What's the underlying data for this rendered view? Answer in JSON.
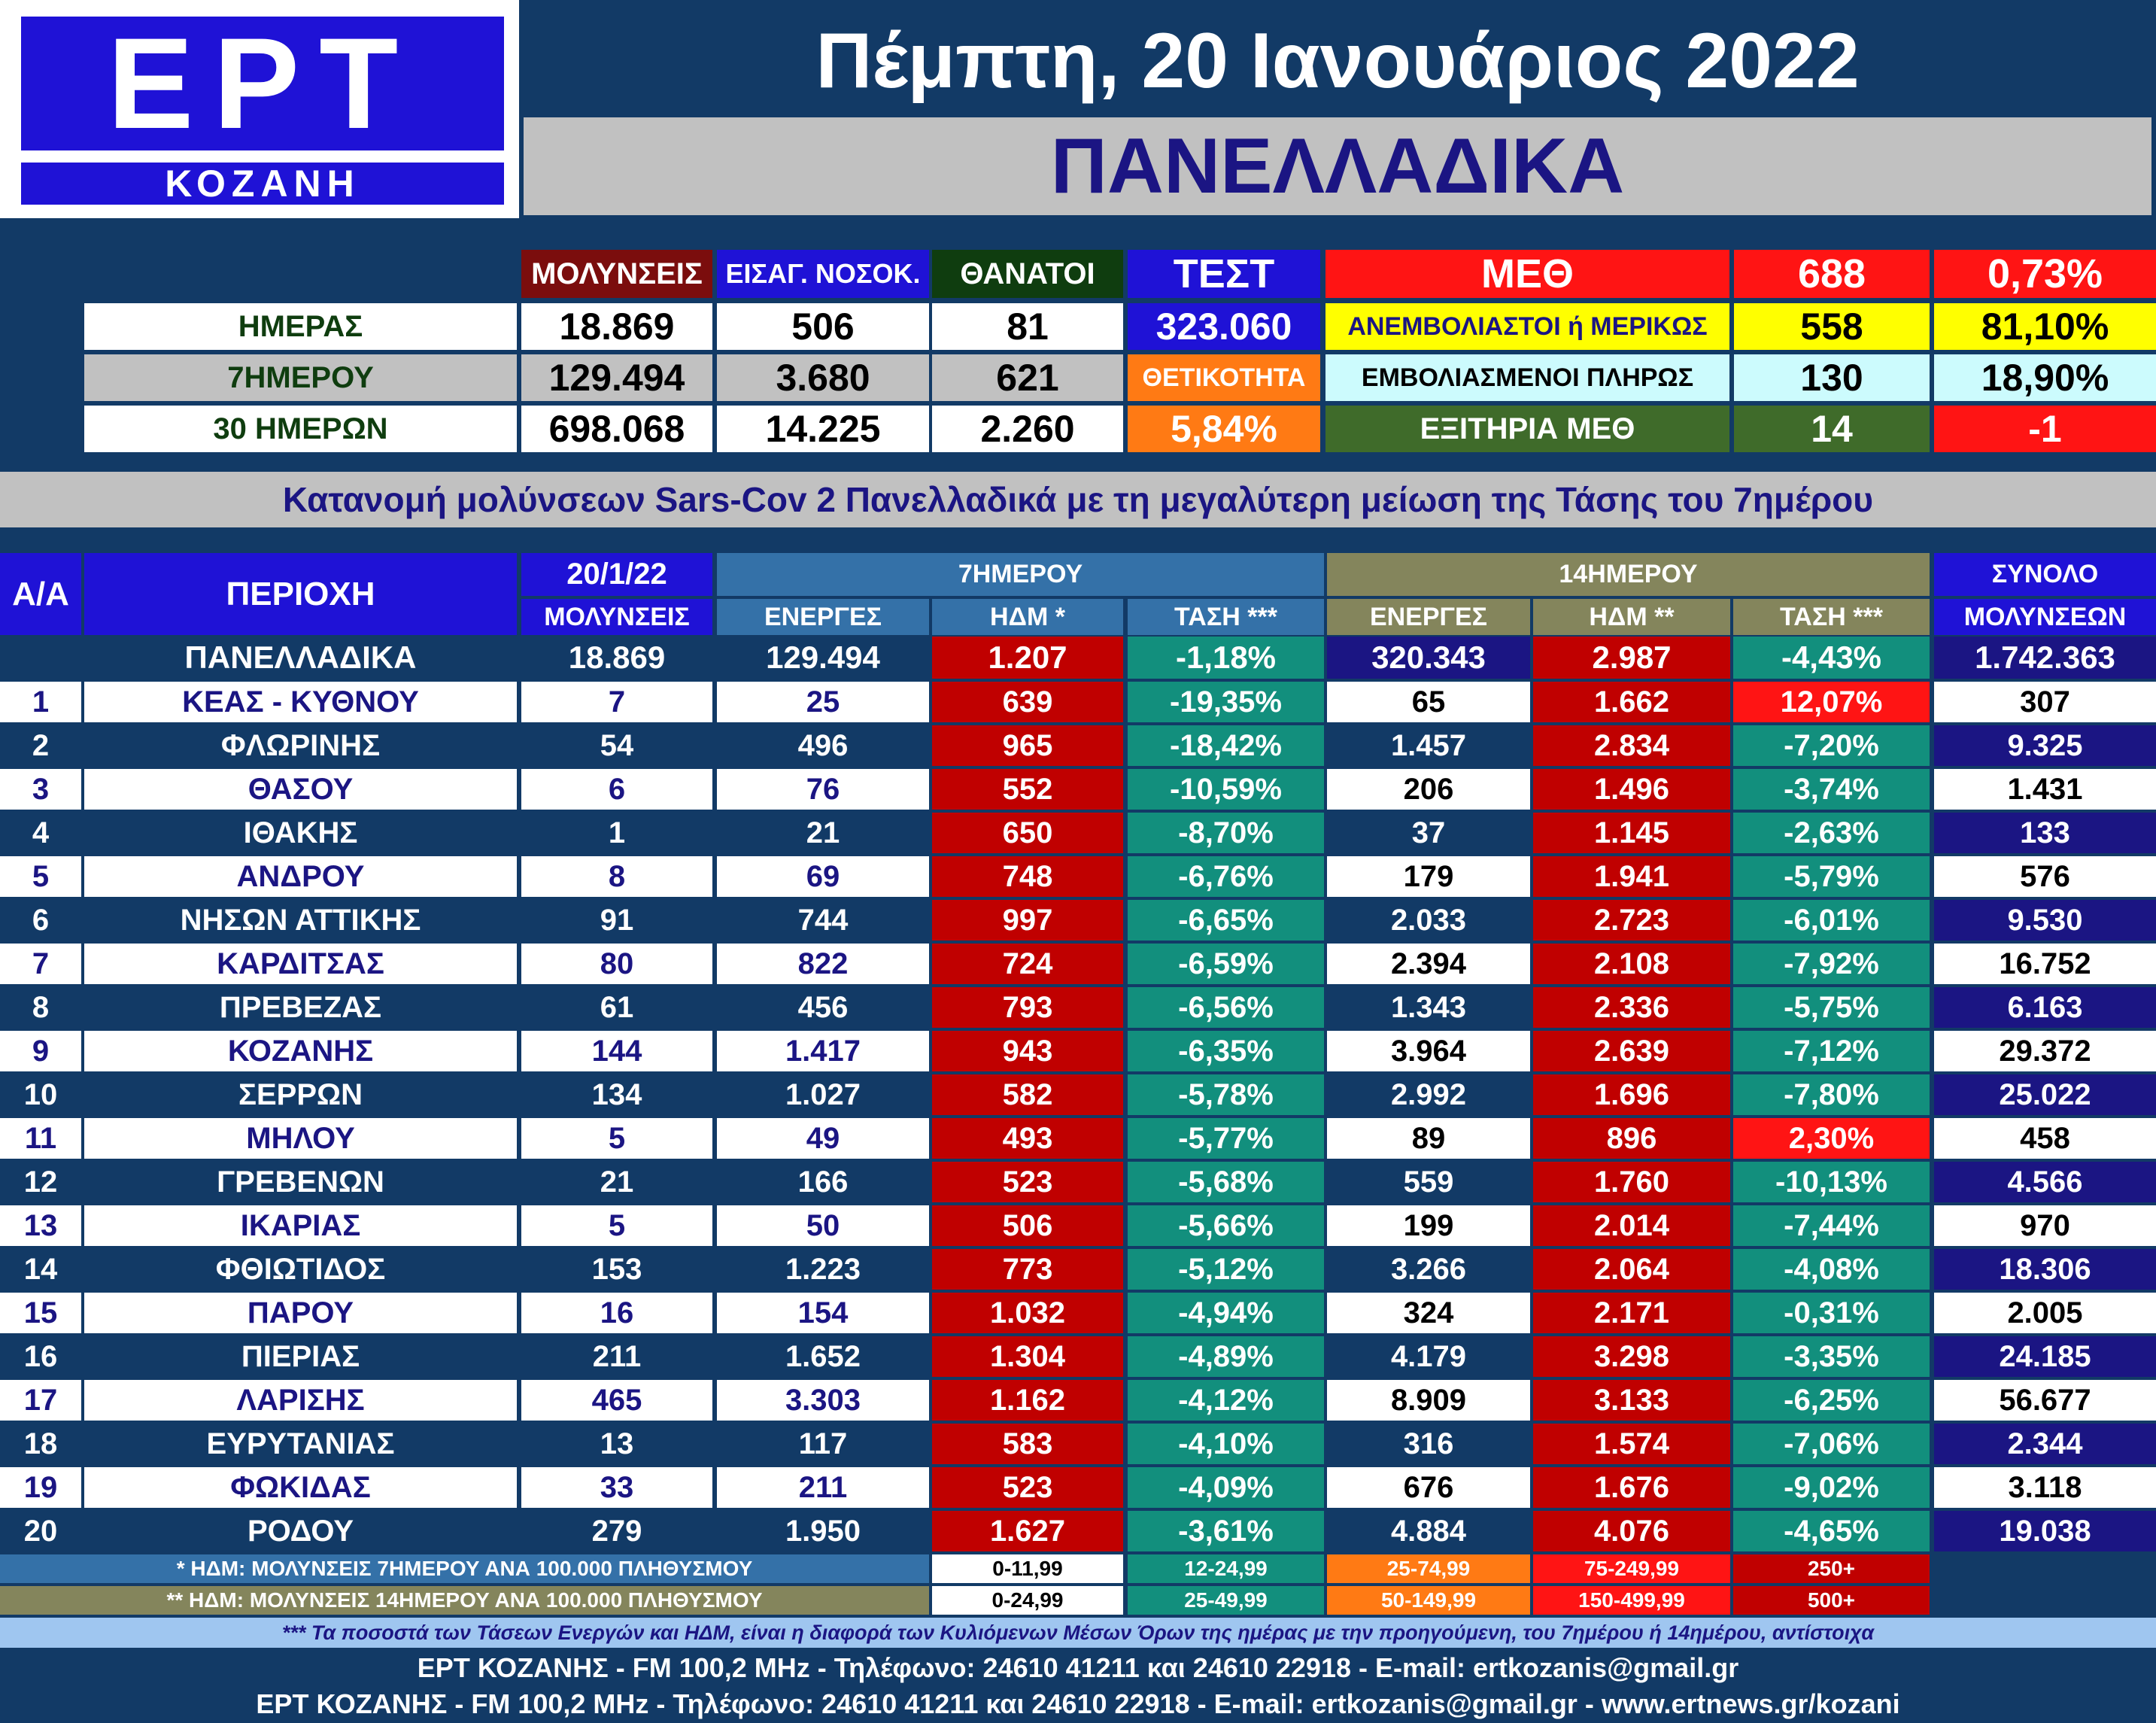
{
  "logo": {
    "top": "ΕΡΤ",
    "bottom": "ΚΟΖΑΝΗ"
  },
  "header": {
    "date": "Πέμπτη, 20 Ιανουάριος 2022",
    "subtitle": "ΠΑΝΕΛΛΑΔΙΚΑ"
  },
  "summary": {
    "col_headers": [
      "ΜΟΛΥΝΣΕΙΣ",
      "ΕΙΣΑΓ. ΝΟΣΟΚ.",
      "ΘΑΝΑΤΟΙ"
    ],
    "rows": [
      {
        "label": "ΗΜΕΡΑΣ",
        "values": [
          "18.869",
          "506",
          "81"
        ]
      },
      {
        "label": "7ΗΜΕΡΟΥ",
        "values": [
          "129.494",
          "3.680",
          "621"
        ]
      },
      {
        "label": "30 ΗΜΕΡΩΝ",
        "values": [
          "698.068",
          "14.225",
          "2.260"
        ]
      }
    ],
    "test_label": "ΤΕΣΤ",
    "test_value": "323.060",
    "positivity_label": "ΘΕΤΙΚΟΤΗΤΑ",
    "positivity_value": "5,84%",
    "icu": [
      {
        "label": "ΜΕΘ",
        "count": "688",
        "pct": "0,73%"
      },
      {
        "label": "ΑΝΕΜΒΟΛΙΑΣΤΟΙ ή ΜΕΡΙΚΩΣ",
        "count": "558",
        "pct": "81,10%"
      },
      {
        "label": "ΕΜΒΟΛΙΑΣΜΕΝΟΙ ΠΛΗΡΩΣ",
        "count": "130",
        "pct": "18,90%"
      },
      {
        "label": "ΕΞΙΤΗΡΙΑ ΜΕΘ",
        "count": "14",
        "pct": "-1"
      }
    ]
  },
  "banner": "Κατανομή μολύνσεων Sars-Cov 2 Πανελλαδικά με τη μεγαλύτερη μείωση της Τάσης του 7ημέρου",
  "table": {
    "h_aa": "Α/Α",
    "h_region": "ΠΕΡΙΟΧΗ",
    "h_date": "20/1/22",
    "h_infections": "ΜΟΛΥΝΣΕΙΣ",
    "h_7day": "7ΗΜΕΡΟΥ",
    "h_14day": "14ΗΜΕΡΟΥ",
    "h_total": "ΣΥΝΟΛΟ",
    "h_total_sub": "ΜΟΛΥΝΣΕΩΝ",
    "h_active": "ΕΝΕΡΓΕΣ",
    "h_hdm7": "ΗΔΜ *",
    "h_trend7": "ΤΑΣΗ ***",
    "h_hdm14": "ΗΔΜ **",
    "h_trend14": "ΤΑΣΗ ***",
    "national": {
      "name": "ΠΑΝΕΛΛΑΔΙΚΑ",
      "cases": "18.869",
      "act7": "129.494",
      "hdm7": "1.207",
      "tr7": "-1,18%",
      "act14": "320.343",
      "hdm14": "2.987",
      "tr14": "-4,43%",
      "total": "1.742.363"
    },
    "rows": [
      {
        "aa": "1",
        "name": "ΚΕΑΣ - ΚΥΘΝΟΥ",
        "cases": "7",
        "act7": "25",
        "hdm7": "639",
        "tr7": "-19,35%",
        "act14": "65",
        "hdm14": "1.662",
        "tr14": "12,07%",
        "total": "307"
      },
      {
        "aa": "2",
        "name": "ΦΛΩΡΙΝΗΣ",
        "cases": "54",
        "act7": "496",
        "hdm7": "965",
        "tr7": "-18,42%",
        "act14": "1.457",
        "hdm14": "2.834",
        "tr14": "-7,20%",
        "total": "9.325"
      },
      {
        "aa": "3",
        "name": "ΘΑΣΟΥ",
        "cases": "6",
        "act7": "76",
        "hdm7": "552",
        "tr7": "-10,59%",
        "act14": "206",
        "hdm14": "1.496",
        "tr14": "-3,74%",
        "total": "1.431"
      },
      {
        "aa": "4",
        "name": "ΙΘΑΚΗΣ",
        "cases": "1",
        "act7": "21",
        "hdm7": "650",
        "tr7": "-8,70%",
        "act14": "37",
        "hdm14": "1.145",
        "tr14": "-2,63%",
        "total": "133"
      },
      {
        "aa": "5",
        "name": "ΑΝΔΡΟΥ",
        "cases": "8",
        "act7": "69",
        "hdm7": "748",
        "tr7": "-6,76%",
        "act14": "179",
        "hdm14": "1.941",
        "tr14": "-5,79%",
        "total": "576"
      },
      {
        "aa": "6",
        "name": "ΝΗΣΩΝ ΑΤΤΙΚΗΣ",
        "cases": "91",
        "act7": "744",
        "hdm7": "997",
        "tr7": "-6,65%",
        "act14": "2.033",
        "hdm14": "2.723",
        "tr14": "-6,01%",
        "total": "9.530"
      },
      {
        "aa": "7",
        "name": "ΚΑΡΔΙΤΣΑΣ",
        "cases": "80",
        "act7": "822",
        "hdm7": "724",
        "tr7": "-6,59%",
        "act14": "2.394",
        "hdm14": "2.108",
        "tr14": "-7,92%",
        "total": "16.752"
      },
      {
        "aa": "8",
        "name": "ΠΡΕΒΕΖΑΣ",
        "cases": "61",
        "act7": "456",
        "hdm7": "793",
        "tr7": "-6,56%",
        "act14": "1.343",
        "hdm14": "2.336",
        "tr14": "-5,75%",
        "total": "6.163"
      },
      {
        "aa": "9",
        "name": "ΚΟΖΑΝΗΣ",
        "cases": "144",
        "act7": "1.417",
        "hdm7": "943",
        "tr7": "-6,35%",
        "act14": "3.964",
        "hdm14": "2.639",
        "tr14": "-7,12%",
        "total": "29.372"
      },
      {
        "aa": "10",
        "name": "ΣΕΡΡΩΝ",
        "cases": "134",
        "act7": "1.027",
        "hdm7": "582",
        "tr7": "-5,78%",
        "act14": "2.992",
        "hdm14": "1.696",
        "tr14": "-7,80%",
        "total": "25.022"
      },
      {
        "aa": "11",
        "name": "ΜΗΛΟΥ",
        "cases": "5",
        "act7": "49",
        "hdm7": "493",
        "tr7": "-5,77%",
        "act14": "89",
        "hdm14": "896",
        "tr14": "2,30%",
        "total": "458"
      },
      {
        "aa": "12",
        "name": "ΓΡΕΒΕΝΩΝ",
        "cases": "21",
        "act7": "166",
        "hdm7": "523",
        "tr7": "-5,68%",
        "act14": "559",
        "hdm14": "1.760",
        "tr14": "-10,13%",
        "total": "4.566"
      },
      {
        "aa": "13",
        "name": "ΙΚΑΡΙΑΣ",
        "cases": "5",
        "act7": "50",
        "hdm7": "506",
        "tr7": "-5,66%",
        "act14": "199",
        "hdm14": "2.014",
        "tr14": "-7,44%",
        "total": "970"
      },
      {
        "aa": "14",
        "name": "ΦΘΙΩΤΙΔΟΣ",
        "cases": "153",
        "act7": "1.223",
        "hdm7": "773",
        "tr7": "-5,12%",
        "act14": "3.266",
        "hdm14": "2.064",
        "tr14": "-4,08%",
        "total": "18.306"
      },
      {
        "aa": "15",
        "name": "ΠΑΡΟΥ",
        "cases": "16",
        "act7": "154",
        "hdm7": "1.032",
        "tr7": "-4,94%",
        "act14": "324",
        "hdm14": "2.171",
        "tr14": "-0,31%",
        "total": "2.005"
      },
      {
        "aa": "16",
        "name": "ΠΙΕΡΙΑΣ",
        "cases": "211",
        "act7": "1.652",
        "hdm7": "1.304",
        "tr7": "-4,89%",
        "act14": "4.179",
        "hdm14": "3.298",
        "tr14": "-3,35%",
        "total": "24.185"
      },
      {
        "aa": "17",
        "name": "ΛΑΡΙΣΗΣ",
        "cases": "465",
        "act7": "3.303",
        "hdm7": "1.162",
        "tr7": "-4,12%",
        "act14": "8.909",
        "hdm14": "3.133",
        "tr14": "-6,25%",
        "total": "56.677"
      },
      {
        "aa": "18",
        "name": "ΕΥΡΥΤΑΝΙΑΣ",
        "cases": "13",
        "act7": "117",
        "hdm7": "583",
        "tr7": "-4,10%",
        "act14": "316",
        "hdm14": "1.574",
        "tr14": "-7,06%",
        "total": "2.344"
      },
      {
        "aa": "19",
        "name": "ΦΩΚΙΔΑΣ",
        "cases": "33",
        "act7": "211",
        "hdm7": "523",
        "tr7": "-4,09%",
        "act14": "676",
        "hdm14": "1.676",
        "tr14": "-9,02%",
        "total": "3.118"
      },
      {
        "aa": "20",
        "name": "ΡΟΔΟΥ",
        "cases": "279",
        "act7": "1.950",
        "hdm7": "1.627",
        "tr7": "-3,61%",
        "act14": "4.884",
        "hdm14": "4.076",
        "tr14": "-4,65%",
        "total": "19.038"
      }
    ]
  },
  "legend": {
    "note7": "* ΗΔΜ: ΜΟΛΥΝΣΕΙΣ 7ΗΜΕΡΟΥ ΑΝΑ 100.000 ΠΛΗΘΥΣΜΟΥ",
    "note14": "** ΗΔΜ: ΜΟΛΥΝΣΕΙΣ 14ΗΜΕΡΟΥ ΑΝΑ 100.000 ΠΛΗΘΥΣΜΟΥ",
    "ranges7": [
      "0-11,99",
      "12-24,99",
      "25-74,99",
      "75-249,99",
      "250+"
    ],
    "ranges14": [
      "0-24,99",
      "25-49,99",
      "50-149,99",
      "150-499,99",
      "500+"
    ],
    "range_colors": [
      "#ffffff",
      "#128f7d",
      "#ff7a14",
      "#ff1414",
      "#c00000"
    ]
  },
  "footer": {
    "note": "*** Τα ποσοστά των Τάσεων Ενεργών και ΗΔΜ, είναι η διαφορά των Κυλιόμενων Μέσων Όρων της ημέρας με την προηγούμενη, του 7ημέρου ή 14ημέρου, αντίστοιχα",
    "line1": "ΕΡΤ ΚΟΖΑΝΗΣ - FM 100,2 MHz - Τηλέφωνο:  24610 41211 και 24610 22918 - E-mail: ertkozanis@gmail.gr",
    "line2": "ΕΡΤ ΚΟΖΑΝΗΣ - FM 100,2 MHz - Τηλέφωνο:  24610 41211 και 24610 22918 - E-mail: ertkozanis@gmail.gr - www.ertnews.gr/kozani"
  },
  "colors": {
    "navy": "#123a66",
    "blue": "#1f12d6",
    "dark_red": "#c00000",
    "teal": "#128f7d",
    "bright_red": "#ff1414",
    "yellow": "#ffff00",
    "orange": "#ff7a14"
  }
}
